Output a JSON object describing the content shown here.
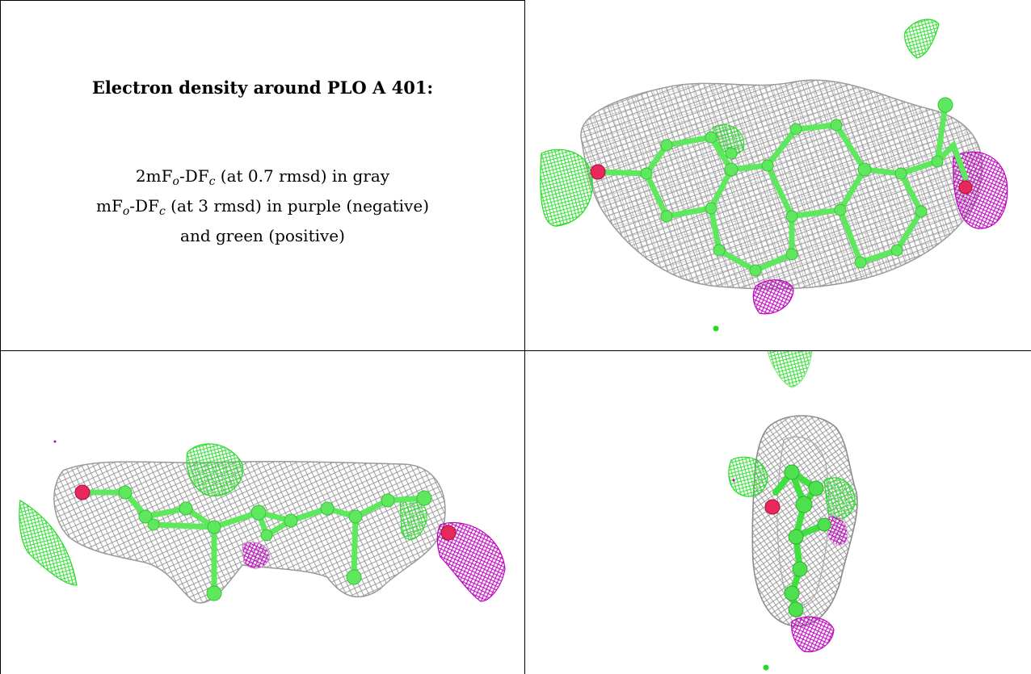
{
  "caption": {
    "title": "Electron density around PLO A 401:",
    "line1_main": "2mF",
    "line1_sub_o": "o",
    "line1_mid": "-DF",
    "line1_sub_c": "c",
    "line1_rest": " (at 0.7 rmsd) in gray",
    "line2_main": "mF",
    "line2_sub_o": "o",
    "line2_mid": "-DF",
    "line2_sub_c": "c",
    "line2_rest": " (at 3 rmsd) in purple (negative)",
    "line3": "and green (positive)"
  },
  "colors": {
    "map_2fofc": "#8c8c8c",
    "map_negative": "#c000c0",
    "map_positive": "#22dd22",
    "carbon": "#5ee85e",
    "oxygen": "#e8285a"
  },
  "views": [
    "top-view-panel",
    "side-view-panel",
    "edge-view-panel"
  ]
}
